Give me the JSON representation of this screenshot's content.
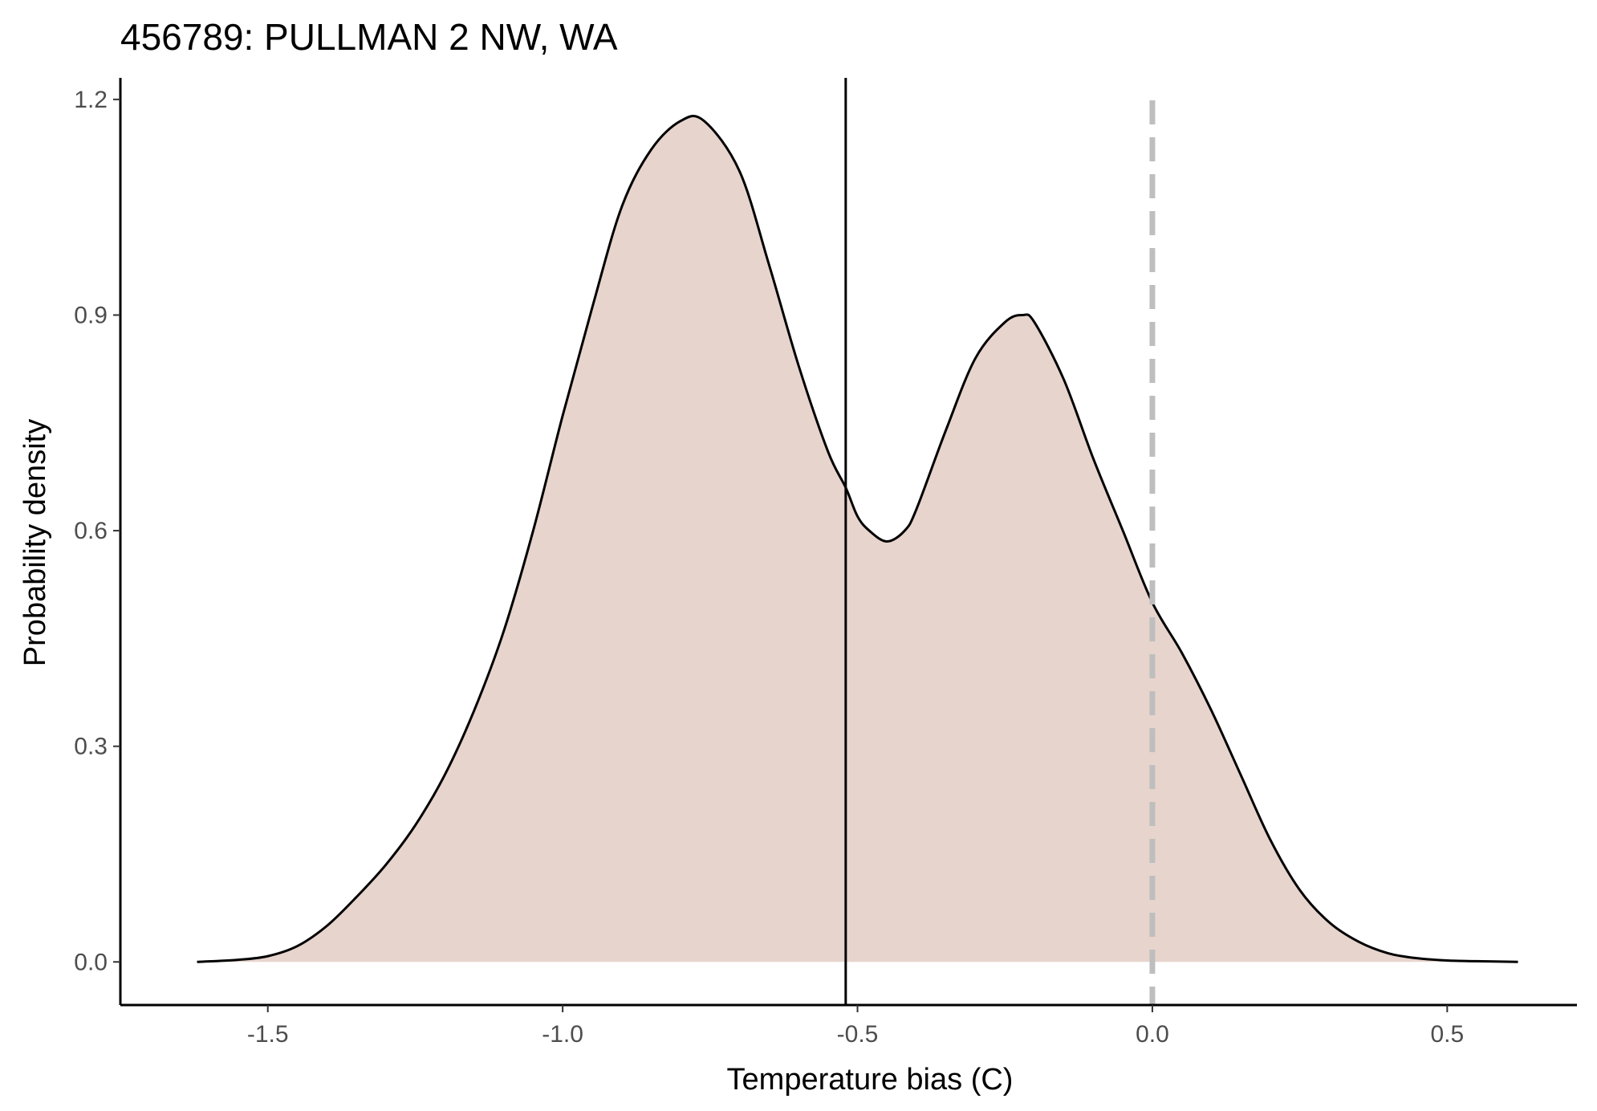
{
  "chart_data": {
    "type": "area",
    "title": "456789: PULLMAN 2 NW, WA",
    "xlabel": "Temperature bias (C)",
    "ylabel": "Probability density",
    "xlim": [
      -1.75,
      0.72
    ],
    "ylim": [
      -0.06,
      1.23
    ],
    "xticks": [
      -1.5,
      -1.0,
      -0.5,
      0.0,
      0.5
    ],
    "xtick_labels": [
      "-1.5",
      "-1.0",
      "-0.5",
      "0.0",
      "0.5"
    ],
    "yticks": [
      0.0,
      0.3,
      0.6,
      0.9,
      1.2
    ],
    "ytick_labels": [
      "0.0",
      "0.3",
      "0.6",
      "0.9",
      "1.2"
    ],
    "grid": false,
    "legend": "none",
    "fill_color": "#e7d4cd",
    "line_color": "#000000",
    "series": [
      {
        "x": [
          -1.62,
          -1.55,
          -1.5,
          -1.45,
          -1.4,
          -1.35,
          -1.3,
          -1.25,
          -1.2,
          -1.15,
          -1.1,
          -1.05,
          -1.0,
          -0.95,
          -0.9,
          -0.85,
          -0.8,
          -0.76,
          -0.7,
          -0.65,
          -0.6,
          -0.55,
          -0.52,
          -0.5,
          -0.48,
          -0.45,
          -0.42,
          -0.4,
          -0.35,
          -0.3,
          -0.25,
          -0.22,
          -0.2,
          -0.15,
          -0.1,
          -0.05,
          0.0,
          0.05,
          0.1,
          0.15,
          0.2,
          0.25,
          0.3,
          0.35,
          0.4,
          0.45,
          0.5,
          0.55,
          0.62
        ],
        "y": [
          0.0,
          0.003,
          0.008,
          0.022,
          0.05,
          0.09,
          0.135,
          0.19,
          0.26,
          0.35,
          0.46,
          0.6,
          0.76,
          0.91,
          1.05,
          1.13,
          1.17,
          1.17,
          1.1,
          0.97,
          0.83,
          0.71,
          0.66,
          0.62,
          0.6,
          0.585,
          0.6,
          0.63,
          0.74,
          0.84,
          0.89,
          0.9,
          0.89,
          0.81,
          0.7,
          0.6,
          0.5,
          0.43,
          0.35,
          0.26,
          0.17,
          0.1,
          0.055,
          0.028,
          0.012,
          0.005,
          0.002,
          0.001,
          0.0
        ]
      }
    ],
    "vlines": [
      {
        "x": -0.52,
        "style": "solid",
        "color": "#000000"
      },
      {
        "x": 0.0,
        "style": "dashed",
        "color": "#bebebe"
      }
    ]
  }
}
